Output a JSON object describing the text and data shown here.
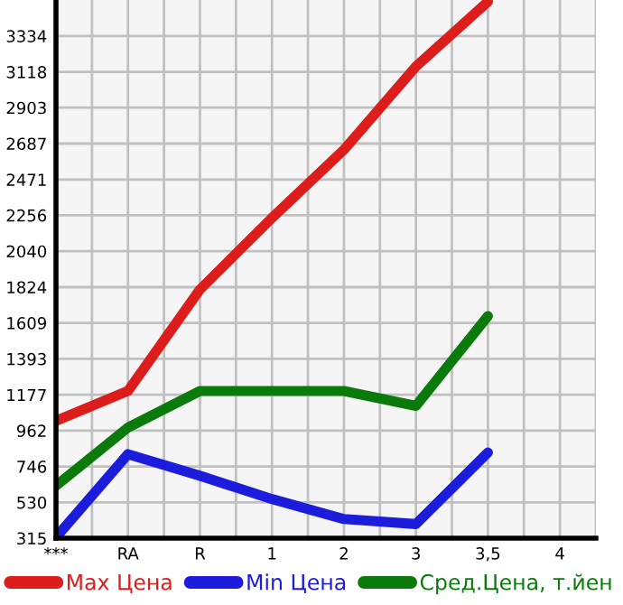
{
  "chart_data": {
    "type": "line",
    "categories": [
      "***",
      "RA",
      "R",
      "1",
      "2",
      "3",
      "3,5",
      "4"
    ],
    "series": [
      {
        "name": "Max Цена",
        "color": "#dd1c1c",
        "values": [
          1020,
          1200,
          1810,
          2240,
          2650,
          3150,
          3540,
          null
        ]
      },
      {
        "name": "Min Цена",
        "color": "#1c1cdd",
        "values": [
          320,
          820,
          690,
          550,
          430,
          400,
          830,
          null
        ]
      },
      {
        "name": "Сред.Цена, т.йен",
        "color": "#0a7a0a",
        "values": [
          630,
          980,
          1200,
          1200,
          1200,
          1110,
          1650,
          null
        ]
      }
    ],
    "ylim": [
      315,
      3550
    ],
    "yticks": [
      315,
      530,
      746,
      962,
      1177,
      1393,
      1609,
      1824,
      2040,
      2256,
      2471,
      2687,
      2903,
      3118,
      3334
    ],
    "grid": true,
    "legend": "bottom",
    "marker": "none",
    "line_style": "solid"
  }
}
